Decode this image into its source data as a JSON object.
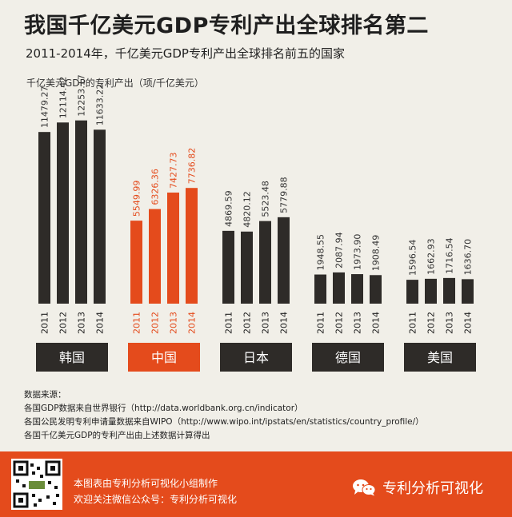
{
  "title": "我国千亿美元GDP专利产出全球排名第二",
  "subtitle": "2011-2014年，千亿美元GDP专利产出全球排名前五的国家",
  "chart_data": {
    "type": "bar",
    "ylabel": "千亿美元GDP的专利产出（项/千亿美元）",
    "ylim": [
      0,
      14000
    ],
    "groups": [
      {
        "name": "韩国",
        "highlight": false,
        "categories": [
          "2011",
          "2012",
          "2013",
          "2014"
        ],
        "values": [
          11479.27,
          12114.42,
          12253.17,
          11633.22
        ],
        "labels": [
          "11479.27",
          "12114.42",
          "12253.17",
          "11633.22"
        ]
      },
      {
        "name": "中国",
        "highlight": true,
        "categories": [
          "2011",
          "2012",
          "2013",
          "2014"
        ],
        "values": [
          5549.99,
          6326.36,
          7427.73,
          7736.82
        ],
        "labels": [
          "5549.99",
          "6326.36",
          "7427.73",
          "7736.82"
        ]
      },
      {
        "name": "日本",
        "highlight": false,
        "categories": [
          "2011",
          "2012",
          "2013",
          "2014"
        ],
        "values": [
          4869.59,
          4820.12,
          5523.48,
          5779.88
        ],
        "labels": [
          "4869.59",
          "4820.12",
          "5523.48",
          "5779.88"
        ]
      },
      {
        "name": "德国",
        "highlight": false,
        "categories": [
          "2011",
          "2012",
          "2013",
          "2014"
        ],
        "values": [
          1948.55,
          2087.94,
          1973.9,
          1908.49
        ],
        "labels": [
          "1948.55",
          "2087.94",
          "1973.90",
          "1908.49"
        ]
      },
      {
        "name": "美国",
        "highlight": false,
        "categories": [
          "2011",
          "2012",
          "2013",
          "2014"
        ],
        "values": [
          1596.54,
          1662.93,
          1716.54,
          1636.7
        ],
        "labels": [
          "1596.54",
          "1662.93",
          "1716.54",
          "1636.70"
        ]
      }
    ]
  },
  "colors": {
    "bar": "#2e2b28",
    "highlight": "#e44b1c",
    "label": "#333333",
    "highlight_label": "#e44b1c",
    "badge_text": "#ffffff",
    "highlight_badge_text": "#ffffff"
  },
  "sources": {
    "heading": "数据来源：",
    "lines": [
      "各国GDP数据来自世界银行（http://data.worldbank.org.cn/indicator）",
      "各国公民发明专利申请量数据来自WIPO（http://www.wipo.int/ipstats/en/statistics/country_profile/）",
      "各国千亿美元GDP的专利产出由上述数据计算得出"
    ]
  },
  "footer": {
    "line1": "本图表由专利分析可视化小组制作",
    "line2": "欢迎关注微信公众号：专利分析可视化",
    "brand": "专利分析可视化",
    "qr_icon": "qr-code-icon",
    "brand_icon": "wechat-icon"
  }
}
